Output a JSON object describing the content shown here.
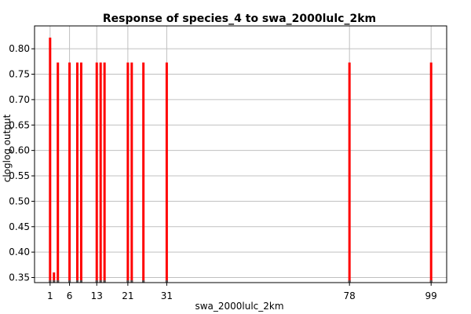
{
  "chart_data": {
    "type": "bar",
    "title": "Response of species_4 to swa_2000lulc_2km",
    "xlabel": "swa_2000lulc_2km",
    "ylabel": "cloglog output",
    "xlim": [
      -3,
      103
    ],
    "ylim": [
      0.34,
      0.845
    ],
    "grid": true,
    "x_ticks": [
      1,
      6,
      13,
      21,
      31,
      78,
      99
    ],
    "y_ticks": [
      0.35,
      0.4,
      0.45,
      0.5,
      0.55,
      0.6,
      0.65,
      0.7,
      0.75,
      0.8
    ],
    "y_tick_labels": [
      "0.35",
      "0.40",
      "0.45",
      "0.50",
      "0.55",
      "0.60",
      "0.65",
      "0.70",
      "0.75",
      "0.80"
    ],
    "series": [
      {
        "color": "#ff0000",
        "points": [
          {
            "x": 1,
            "y": 0.822
          },
          {
            "x": 2,
            "y": 0.36
          },
          {
            "x": 3,
            "y": 0.773
          },
          {
            "x": 6,
            "y": 0.773
          },
          {
            "x": 8,
            "y": 0.773
          },
          {
            "x": 9,
            "y": 0.773
          },
          {
            "x": 13,
            "y": 0.773
          },
          {
            "x": 14,
            "y": 0.773
          },
          {
            "x": 15,
            "y": 0.773
          },
          {
            "x": 21,
            "y": 0.773
          },
          {
            "x": 22,
            "y": 0.773
          },
          {
            "x": 25,
            "y": 0.773
          },
          {
            "x": 31,
            "y": 0.773
          },
          {
            "x": 78,
            "y": 0.773
          },
          {
            "x": 99,
            "y": 0.773
          }
        ]
      }
    ]
  }
}
